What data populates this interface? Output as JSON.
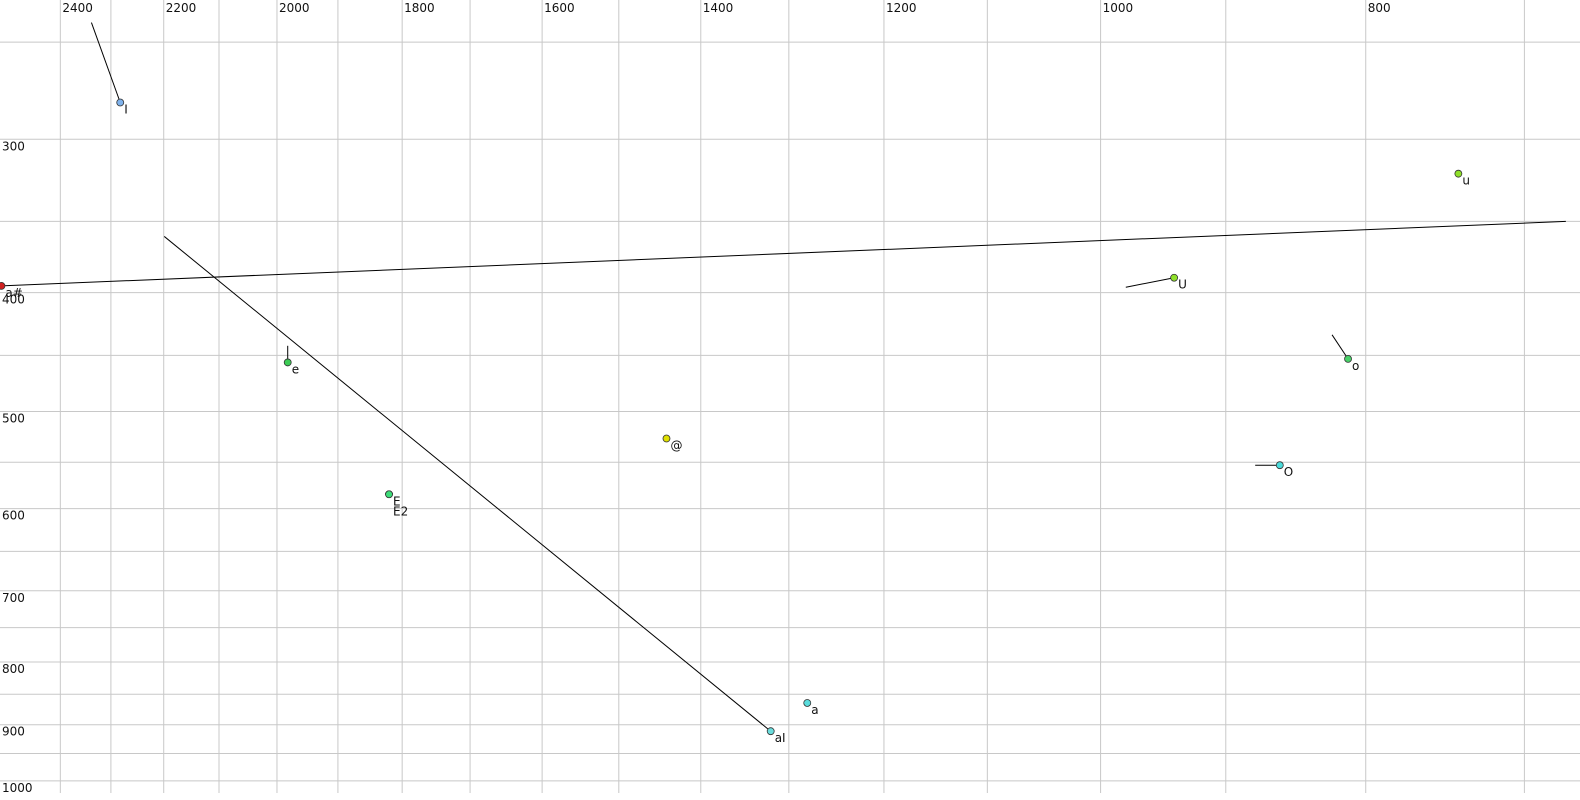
{
  "chart_data": {
    "type": "scatter",
    "log_x": true,
    "log_y": true,
    "x_reversed": true,
    "grid": true,
    "xlim": [
      2525,
      668
    ],
    "ylim": [
      231,
      1023
    ],
    "xticks": [
      2400,
      2200,
      2000,
      1800,
      1600,
      1400,
      1200,
      1000,
      800
    ],
    "xminor_ticks": [
      2300,
      2100,
      1900,
      1700,
      1500,
      1300,
      1100,
      900,
      700
    ],
    "yticks": [
      300,
      400,
      500,
      600,
      700,
      800,
      900,
      1000
    ],
    "yminor_ticks": [
      250,
      350,
      450,
      550,
      650,
      750,
      850,
      950
    ],
    "series": [
      {
        "name": "I",
        "color": "#7fb2ec",
        "x": [
          2338,
          2282
        ],
        "y": [
          241,
          280
        ]
      },
      {
        "name": "u",
        "color": "#8fe02a",
        "x": [
          740
        ],
        "y": [
          320
        ]
      },
      {
        "name": "a#",
        "color": "#d02020",
        "x": [
          676,
          2522
        ],
        "y": [
          350,
          395
        ]
      },
      {
        "name": "U",
        "color": "#8fe02a",
        "x": [
          979,
          940
        ],
        "y": [
          396,
          389
        ]
      },
      {
        "name": "e",
        "color": "#3ccc55",
        "x": [
          1982,
          1982
        ],
        "y": [
          442,
          456
        ]
      },
      {
        "name": "o",
        "color": "#48d068",
        "x": [
          823,
          812
        ],
        "y": [
          433,
          453
        ]
      },
      {
        "name": "@",
        "color": "#e0e000",
        "x": [
          1441
        ],
        "y": [
          526
        ]
      },
      {
        "name": "O",
        "color": "#4adada",
        "x": [
          878,
          860
        ],
        "y": [
          553,
          553
        ]
      },
      {
        "name": "E",
        "color": "#3ddc78",
        "x": [
          1820
        ],
        "y": [
          584
        ]
      },
      {
        "name": "E2",
        "color": "#3ddc78",
        "x": [
          1820
        ],
        "y": [
          584
        ]
      },
      {
        "name": "a",
        "color": "#5adcdc",
        "x": [
          1280
        ],
        "y": [
          864
        ]
      },
      {
        "name": "aI",
        "color": "#6adcdc",
        "x": [
          2199,
          1320
        ],
        "y": [
          360,
          911
        ]
      }
    ]
  }
}
